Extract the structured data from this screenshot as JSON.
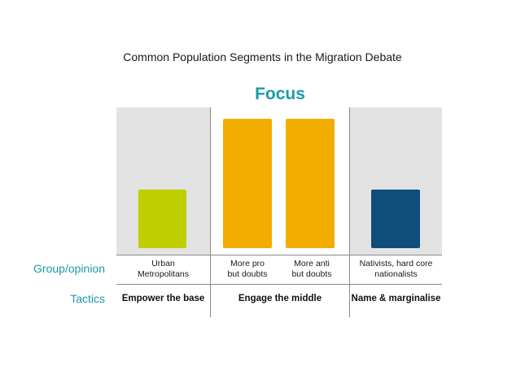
{
  "title": "Common Population Segments in the Migration Debate",
  "focus_label": "Focus",
  "row_labels": {
    "group": "Group/opinion",
    "tactics": "Tactics"
  },
  "segments": [
    {
      "name": "Urban\nMetropolitans",
      "level": 0.45,
      "color": "#bfcf00"
    },
    {
      "name": "More pro\nbut doubts",
      "level": 1.0,
      "color": "#f2ad00"
    },
    {
      "name": "More anti\nbut doubts",
      "level": 1.0,
      "color": "#f2ad00"
    },
    {
      "name": "Nativists, hard core\nnationalists",
      "level": 0.45,
      "color": "#0f4d7a"
    }
  ],
  "tactics": [
    "Empower the base",
    "Engage the middle",
    "Name & marginalise"
  ],
  "colors": {
    "accent": "#1b9aaa",
    "panel": "#e3e3e3",
    "divider": "#8a8a8a"
  }
}
